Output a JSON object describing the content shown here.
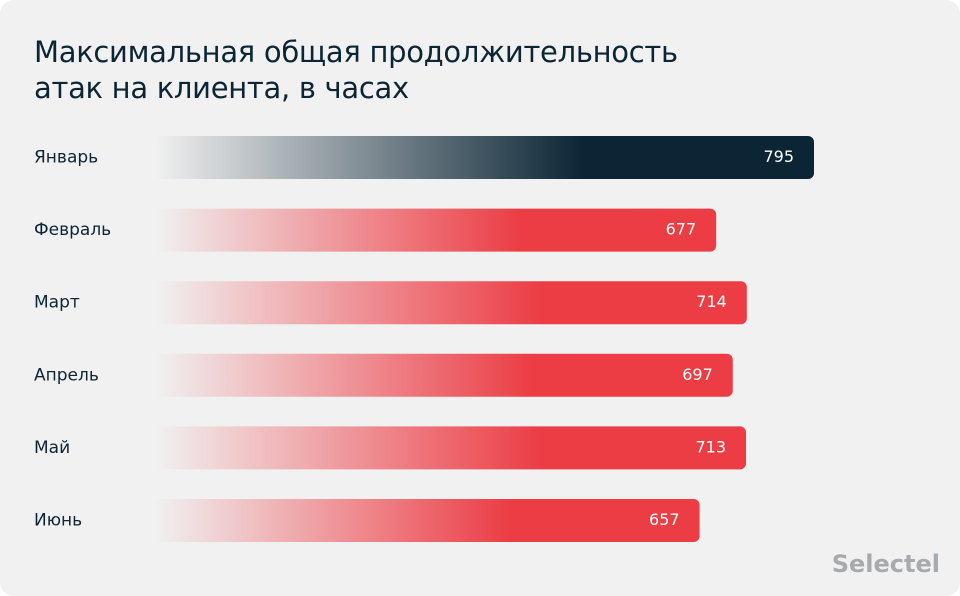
{
  "chart_data": {
    "type": "bar",
    "orientation": "horizontal",
    "title": "Максимальная общая продолжительность атак на клиента, в часах",
    "categories": [
      "Январь",
      "Февраль",
      "Март",
      "Апрель",
      "Май",
      "Июнь"
    ],
    "values": [
      795,
      677,
      714,
      697,
      713,
      657
    ],
    "colors": [
      "#0b2535",
      "#ec3d45",
      "#ec3d45",
      "#ec3d45",
      "#ec3d45",
      "#ec3d45"
    ],
    "source": "Selectel"
  }
}
